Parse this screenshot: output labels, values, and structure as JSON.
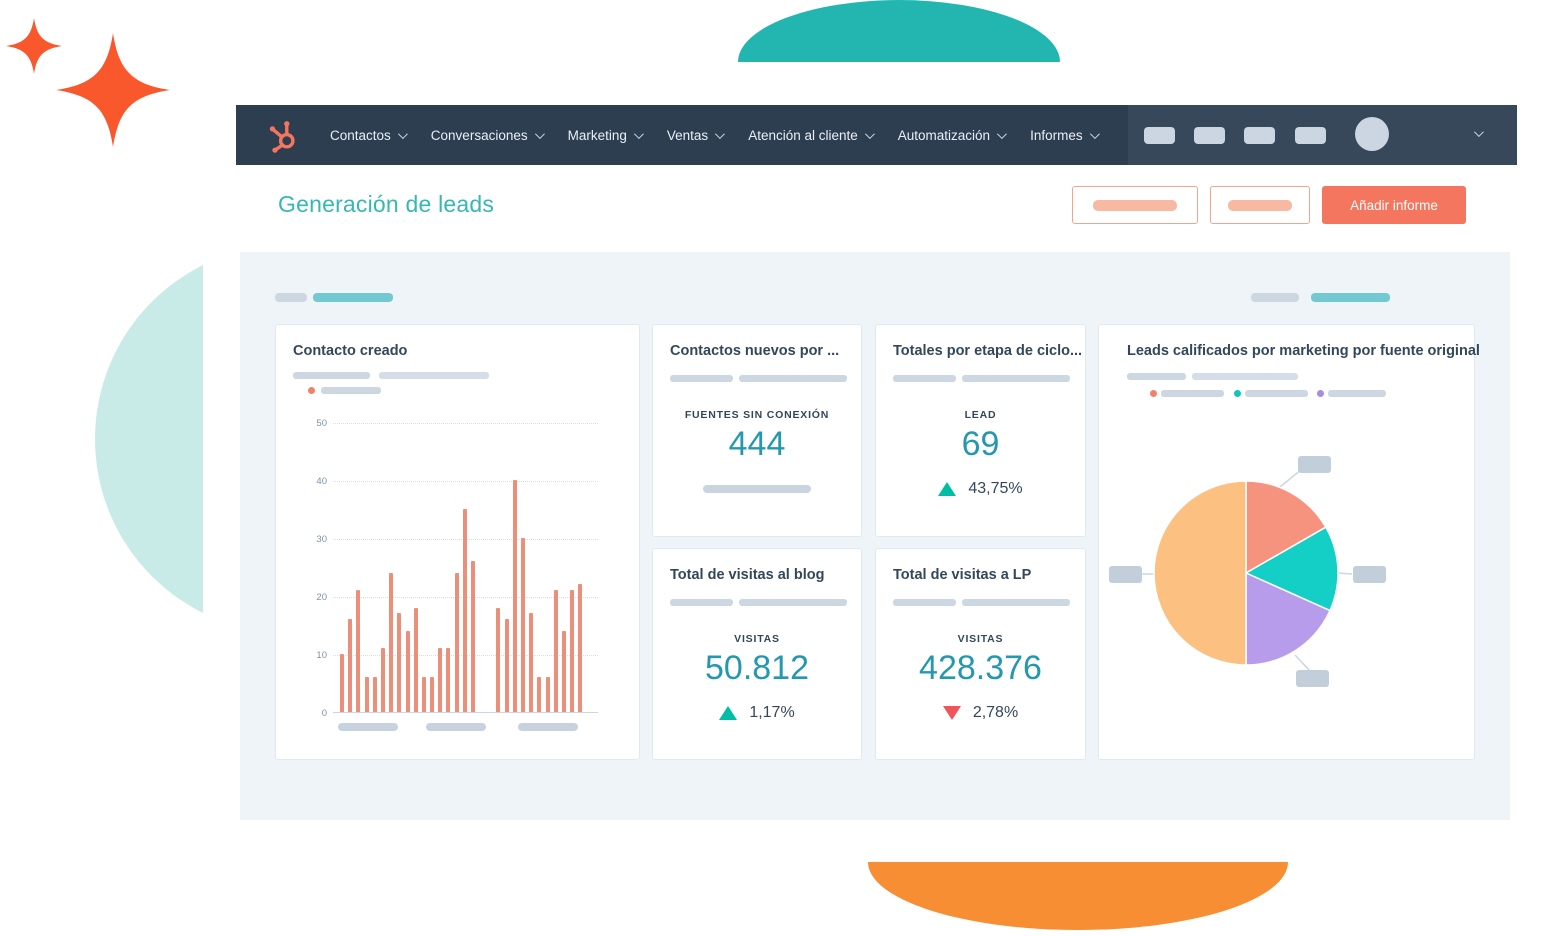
{
  "nav": {
    "items": [
      {
        "label": "Contactos"
      },
      {
        "label": "Conversaciones"
      },
      {
        "label": "Marketing"
      },
      {
        "label": "Ventas"
      },
      {
        "label": "Atención al cliente"
      },
      {
        "label": "Automatización"
      },
      {
        "label": "Informes"
      }
    ]
  },
  "page": {
    "title": "Generación de leads",
    "add_report_label": "Añadir informe"
  },
  "cards": {
    "contact_created": {
      "title": "Contacto creado"
    },
    "new_contacts": {
      "title": "Contactos nuevos por ...",
      "metric_label": "FUENTES SIN CONEXIÓN",
      "value": "444"
    },
    "lifecycle_totals": {
      "title": "Totales por etapa de ciclo...",
      "metric_label": "LEAD",
      "value": "69",
      "delta": "43,75%",
      "delta_direction": "up"
    },
    "blog_visits": {
      "title": "Total de visitas al blog",
      "metric_label": "VISITAS",
      "value": "50.812",
      "delta": "1,17%",
      "delta_direction": "up"
    },
    "lp_visits": {
      "title": "Total de visitas a LP",
      "metric_label": "VISITAS",
      "value": "428.376",
      "delta": "2,78%",
      "delta_direction": "down"
    },
    "mql_by_source": {
      "title": "Leads calificados por marketing por fuente original"
    }
  },
  "chart_data": [
    {
      "type": "bar",
      "title": "Contacto creado",
      "xlabel": "",
      "ylabel": "",
      "ylim": [
        0,
        50
      ],
      "yticks": [
        0,
        10,
        20,
        30,
        40,
        50
      ],
      "grid": "horizontal-dotted",
      "bar_color": "#eb8f7a",
      "values": [
        10,
        16,
        21,
        6,
        6,
        11,
        24,
        17,
        14,
        18,
        6,
        6,
        11,
        11,
        24,
        35,
        26,
        18,
        16,
        40,
        30,
        17,
        6,
        6,
        21,
        14,
        21,
        22
      ],
      "group_split_index": 17
    },
    {
      "type": "pie",
      "title": "Leads calificados por marketing por fuente original",
      "start_angle_deg": 0,
      "legend_position": "top",
      "slices": [
        {
          "name": "coral-slice",
          "percent": 16.7,
          "color": "#f5937e"
        },
        {
          "name": "teal-slice",
          "percent": 15.0,
          "color": "#14cfc6"
        },
        {
          "name": "purple-slice",
          "percent": 18.3,
          "color": "#b69ceb"
        },
        {
          "name": "peach-slice",
          "percent": 50.0,
          "color": "#fcc180"
        }
      ]
    }
  ],
  "colors": {
    "navbar_bg": "#2d3e50",
    "accent_orange": "#f4765f",
    "brand_sparkle_orange": "#f9572c",
    "deco_teal": "#23b6b0",
    "deco_orange": "#f78e33",
    "title_teal": "#35b8b4",
    "metric_teal": "#2498ae",
    "delta_up_green": "#00bda5",
    "delta_down_red": "#f2545b",
    "legend_dots": [
      "#f0826a",
      "#0fc5bf",
      "#a98ae0"
    ]
  }
}
